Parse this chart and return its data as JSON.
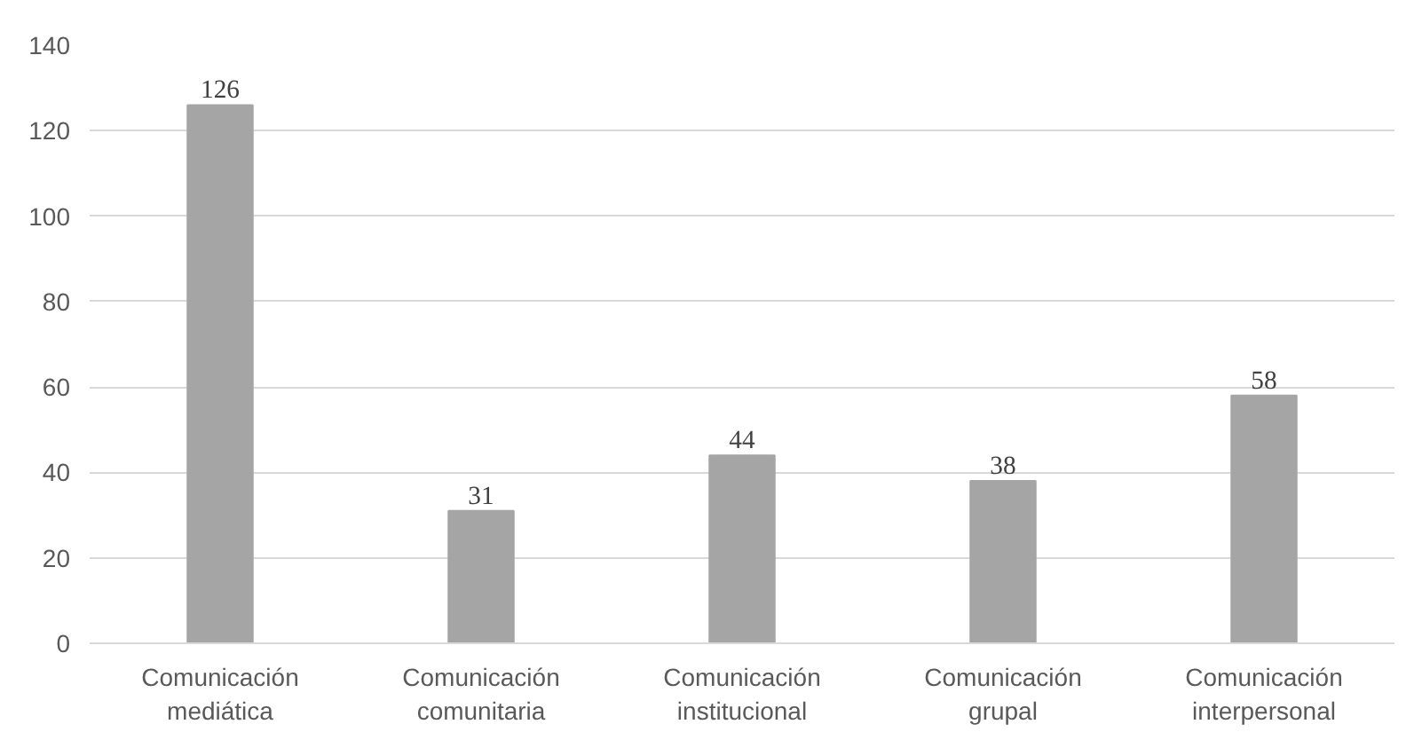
{
  "chart_data": {
    "type": "bar",
    "categories": [
      "Comunicación mediática",
      "Comunicación comunitaria",
      "Comunicación institucional",
      "Comunicación grupal",
      "Comunicación interpersonal"
    ],
    "values": [
      126,
      31,
      44,
      38,
      58
    ],
    "color": "#a5a5a5",
    "ylim": [
      0,
      140
    ],
    "yticks": [
      0,
      20,
      40,
      60,
      80,
      100,
      120,
      140
    ],
    "grid": "y",
    "data_labels": true
  }
}
